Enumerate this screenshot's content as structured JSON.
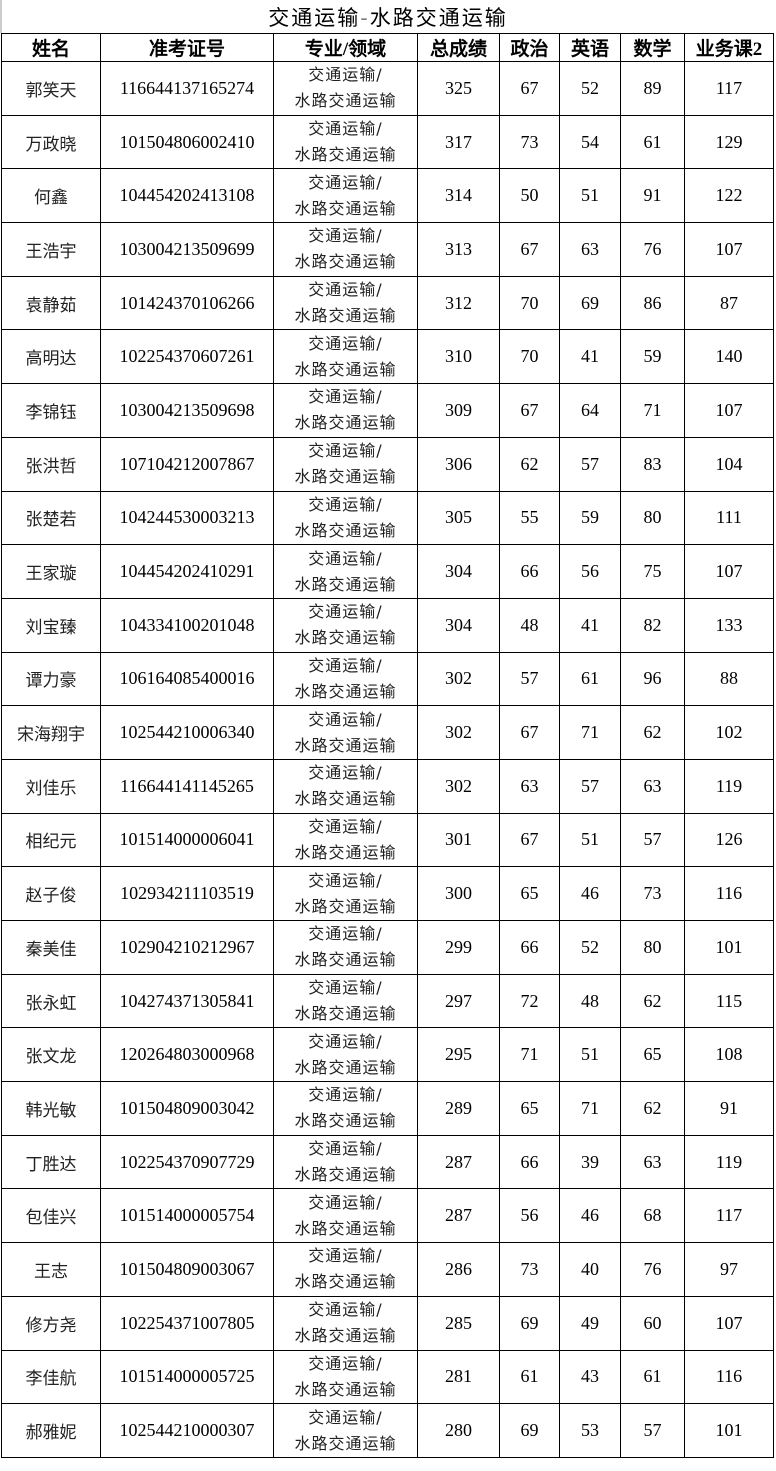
{
  "title": "交通运输-水路交通运输",
  "headers": [
    "姓名",
    "准考证号",
    "专业/领域",
    "总成绩",
    "政治",
    "英语",
    "数学",
    "业务课2"
  ],
  "major_line1": "交通运输/",
  "major_line2": "水路交通运输",
  "rows": [
    [
      "郭笑天",
      "116644137165274",
      "325",
      "67",
      "52",
      "89",
      "117"
    ],
    [
      "万政晓",
      "101504806002410",
      "317",
      "73",
      "54",
      "61",
      "129"
    ],
    [
      "何鑫",
      "104454202413108",
      "314",
      "50",
      "51",
      "91",
      "122"
    ],
    [
      "王浩宇",
      "103004213509699",
      "313",
      "67",
      "63",
      "76",
      "107"
    ],
    [
      "袁静茹",
      "101424370106266",
      "312",
      "70",
      "69",
      "86",
      "87"
    ],
    [
      "高明达",
      "102254370607261",
      "310",
      "70",
      "41",
      "59",
      "140"
    ],
    [
      "李锦钰",
      "103004213509698",
      "309",
      "67",
      "64",
      "71",
      "107"
    ],
    [
      "张洪哲",
      "107104212007867",
      "306",
      "62",
      "57",
      "83",
      "104"
    ],
    [
      "张楚若",
      "104244530003213",
      "305",
      "55",
      "59",
      "80",
      "111"
    ],
    [
      "王家璇",
      "104454202410291",
      "304",
      "66",
      "56",
      "75",
      "107"
    ],
    [
      "刘宝臻",
      "104334100201048",
      "304",
      "48",
      "41",
      "82",
      "133"
    ],
    [
      "谭力豪",
      "106164085400016",
      "302",
      "57",
      "61",
      "96",
      "88"
    ],
    [
      "宋海翔宇",
      "102544210006340",
      "302",
      "67",
      "71",
      "62",
      "102"
    ],
    [
      "刘佳乐",
      "116644141145265",
      "302",
      "63",
      "57",
      "63",
      "119"
    ],
    [
      "相纪元",
      "101514000006041",
      "301",
      "67",
      "51",
      "57",
      "126"
    ],
    [
      "赵子俊",
      "102934211103519",
      "300",
      "65",
      "46",
      "73",
      "116"
    ],
    [
      "秦美佳",
      "102904210212967",
      "299",
      "66",
      "52",
      "80",
      "101"
    ],
    [
      "张永虹",
      "104274371305841",
      "297",
      "72",
      "48",
      "62",
      "115"
    ],
    [
      "张文龙",
      "120264803000968",
      "295",
      "71",
      "51",
      "65",
      "108"
    ],
    [
      "韩光敏",
      "101504809003042",
      "289",
      "65",
      "71",
      "62",
      "91"
    ],
    [
      "丁胜达",
      "102254370907729",
      "287",
      "66",
      "39",
      "63",
      "119"
    ],
    [
      "包佳兴",
      "101514000005754",
      "287",
      "56",
      "46",
      "68",
      "117"
    ],
    [
      "王志",
      "101504809003067",
      "286",
      "73",
      "40",
      "76",
      "97"
    ],
    [
      "修方尧",
      "102254371007805",
      "285",
      "69",
      "49",
      "60",
      "107"
    ],
    [
      "李佳航",
      "101514000005725",
      "281",
      "61",
      "43",
      "61",
      "116"
    ],
    [
      "郝雅妮",
      "102544210000307",
      "280",
      "69",
      "53",
      "57",
      "101"
    ]
  ]
}
